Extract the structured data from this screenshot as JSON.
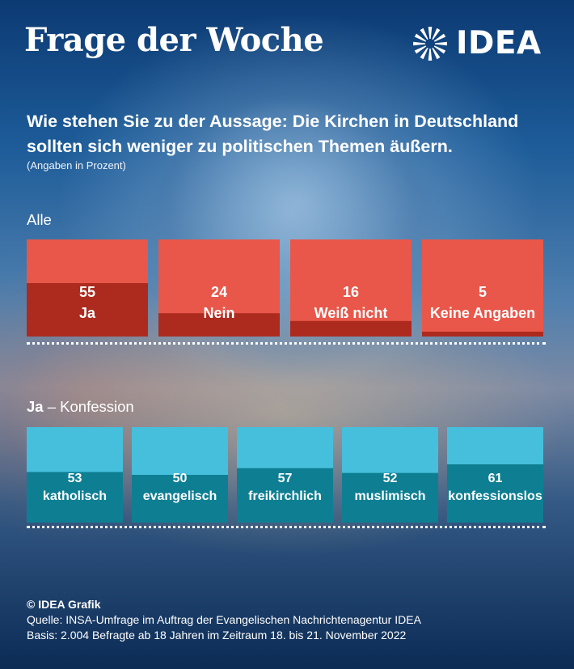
{
  "header": {
    "title": "Frage der Woche",
    "logo_text": "IDEA",
    "logo_icon": "idea-sunburst-logo"
  },
  "question": {
    "text": "Wie stehen Sie zu der Aussage: Die Kirchen in Deutschland sollten sich weniger zu politischen Themen äußern.",
    "note": "(Angaben in Prozent)"
  },
  "sections": {
    "all_label": "Alle",
    "ja_bold": "Ja",
    "ja_rest": " – Konfession"
  },
  "colors": {
    "all_light": "#e8574a",
    "all_dark": "#ad2a1e",
    "ja_light": "#45bfdb",
    "ja_dark": "#0e7f93",
    "divider": "#ffffff"
  },
  "chart_data": [
    {
      "type": "bar",
      "title": "Alle",
      "categories": [
        "Ja",
        "Nein",
        "Weiß nicht",
        "Keine Angaben"
      ],
      "values": [
        55,
        24,
        16,
        5
      ],
      "ylim": [
        0,
        100
      ]
    },
    {
      "type": "bar",
      "title": "Ja – Konfession",
      "categories": [
        "katholisch",
        "evangelisch",
        "freikirchlich",
        "muslimisch",
        "konfessionslos"
      ],
      "values": [
        53,
        50,
        57,
        52,
        61
      ],
      "ylim": [
        0,
        100
      ]
    }
  ],
  "footer": {
    "copyright": "© IDEA Grafik",
    "source": "Quelle: INSA-Umfrage im Auftrag der Evangelischen Nachrichtenagentur IDEA",
    "basis": "Basis: 2.004 Befragte ab 18 Jahren im Zeitraum 18. bis 21. November 2022"
  }
}
